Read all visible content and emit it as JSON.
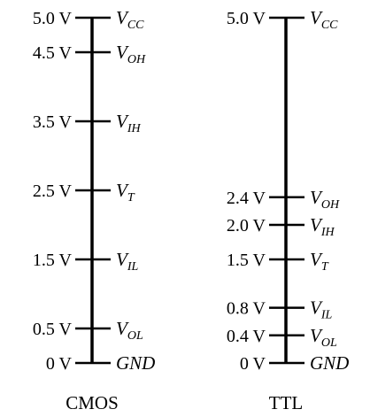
{
  "columns": [
    {
      "name": "CMOS",
      "levels": [
        {
          "value": 5.0,
          "voltage": "5.0 V",
          "symbol": "V",
          "sub": "CC"
        },
        {
          "value": 4.5,
          "voltage": "4.5 V",
          "symbol": "V",
          "sub": "OH"
        },
        {
          "value": 3.5,
          "voltage": "3.5 V",
          "symbol": "V",
          "sub": "IH"
        },
        {
          "value": 2.5,
          "voltage": "2.5 V",
          "symbol": "V",
          "sub": "T"
        },
        {
          "value": 1.5,
          "voltage": "1.5 V",
          "symbol": "V",
          "sub": "IL"
        },
        {
          "value": 0.5,
          "voltage": "0.5 V",
          "symbol": "V",
          "sub": "OL"
        },
        {
          "value": 0.0,
          "voltage": "0 V",
          "symbol": "GND",
          "sub": ""
        }
      ]
    },
    {
      "name": "TTL",
      "levels": [
        {
          "value": 5.0,
          "voltage": "5.0 V",
          "symbol": "V",
          "sub": "CC"
        },
        {
          "value": 2.4,
          "voltage": "2.4 V",
          "symbol": "V",
          "sub": "OH"
        },
        {
          "value": 2.0,
          "voltage": "2.0 V",
          "symbol": "V",
          "sub": "IH"
        },
        {
          "value": 1.5,
          "voltage": "1.5 V",
          "symbol": "V",
          "sub": "T"
        },
        {
          "value": 0.8,
          "voltage": "0.8 V",
          "symbol": "V",
          "sub": "IL"
        },
        {
          "value": 0.4,
          "voltage": "0.4 V",
          "symbol": "V",
          "sub": "OL"
        },
        {
          "value": 0.0,
          "voltage": "0 V",
          "symbol": "GND",
          "sub": ""
        }
      ]
    }
  ]
}
